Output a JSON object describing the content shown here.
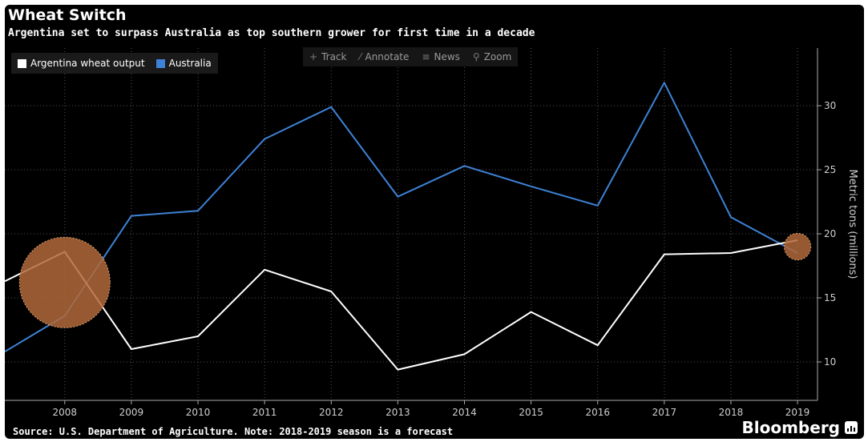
{
  "title": "Wheat Switch",
  "subtitle": "Argentina set to surpass Australia as top southern grower for first time in a decade",
  "legend": [
    {
      "label": "Argentina wheat output",
      "color": "#ffffff"
    },
    {
      "label": "Australia",
      "color": "#3d82d6"
    }
  ],
  "toolbar": [
    {
      "label": "Track",
      "icon": "crosshair-icon",
      "glyph": "+"
    },
    {
      "label": "Annotate",
      "icon": "pencil-icon",
      "glyph": "⁄"
    },
    {
      "label": "News",
      "icon": "news-icon",
      "glyph": "≡"
    },
    {
      "label": "Zoom",
      "icon": "magnifier-icon",
      "glyph": "⚲"
    }
  ],
  "source": "Source: U.S. Department of Agriculture. Note: 2018-2019 season is a forecast",
  "brand": "Bloomberg",
  "chart_data": {
    "type": "line",
    "x": [
      2007.1,
      2008,
      2009,
      2010,
      2011,
      2012,
      2013,
      2014,
      2015,
      2016,
      2017,
      2018,
      2019
    ],
    "xticks": [
      "2008",
      "2009",
      "2010",
      "2011",
      "2012",
      "2013",
      "2014",
      "2015",
      "2016",
      "2017",
      "2018",
      "2019"
    ],
    "series": [
      {
        "name": "Argentina wheat output",
        "color": "#ffffff",
        "values": [
          16.3,
          18.6,
          11.0,
          12.0,
          17.2,
          15.5,
          9.4,
          10.6,
          13.9,
          11.3,
          18.4,
          18.5,
          19.5
        ]
      },
      {
        "name": "Australia",
        "color": "#3d82d6",
        "values": [
          10.8,
          13.6,
          21.4,
          21.8,
          27.4,
          29.9,
          22.9,
          25.3,
          23.7,
          22.2,
          31.8,
          21.3,
          18.5
        ]
      }
    ],
    "yticks": [
      10,
      15,
      20,
      25,
      30
    ],
    "ylabel": "Metric tons (millions)",
    "ylim": [
      7,
      34.5
    ],
    "grid": true,
    "y_axis_side": "right",
    "highlights": [
      {
        "x": 2008,
        "y": 16.2,
        "r_years": 0.68,
        "color": "#b0683a"
      },
      {
        "x": 2019,
        "y": 19.0,
        "r_years": 0.2,
        "color": "#b0683a"
      }
    ]
  }
}
